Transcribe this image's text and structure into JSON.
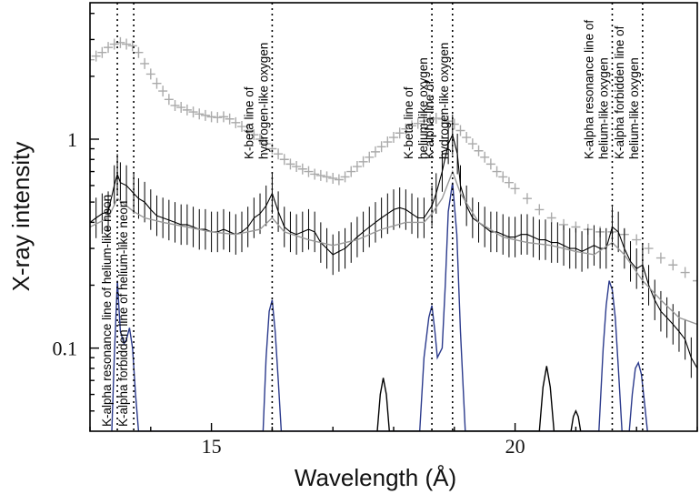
{
  "chart_data": {
    "type": "line",
    "title": "",
    "xlabel": "Wavelength (Å)",
    "ylabel": "X-ray intensity",
    "xlim": [
      13.0,
      23.0
    ],
    "ylim": [
      0.04,
      4.5
    ],
    "yscale": "log",
    "x_ticks": [
      15,
      20
    ],
    "y_ticks": [
      {
        "value": 0.1,
        "label": "0.1"
      },
      {
        "value": 1,
        "label": "1"
      }
    ],
    "grid": false,
    "annotations": [
      {
        "x": 13.45,
        "text": "K-alpha resonance line of helium-like neon"
      },
      {
        "x": 13.72,
        "text": "K-alpha forbidden line of helium-like neon"
      },
      {
        "x": 16.0,
        "lines": [
          "K-beta line of",
          "hydrogen-like oxygen"
        ]
      },
      {
        "x": 18.63,
        "lines": [
          "K-beta line of",
          "helium-like oxygen"
        ]
      },
      {
        "x": 18.97,
        "lines": [
          "K-alpha line of",
          "hydrogen-like oxygen"
        ]
      },
      {
        "x": 21.6,
        "lines": [
          "K-alpha resonance line of",
          "helium-like oxygen"
        ]
      },
      {
        "x": 22.1,
        "lines": [
          "K-alpha forbidden line of",
          "helium-like oxygen"
        ]
      }
    ],
    "series": [
      {
        "color": "#aaaaaa",
        "style": "crosses",
        "x": [
          13.0,
          13.1,
          13.2,
          13.3,
          13.4,
          13.5,
          13.6,
          13.7,
          13.8,
          13.9,
          14.0,
          14.1,
          14.2,
          14.3,
          14.4,
          14.5,
          14.6,
          14.7,
          14.8,
          14.9,
          15.0,
          15.1,
          15.2,
          15.3,
          15.4,
          15.5,
          15.6,
          15.7,
          15.8,
          15.9,
          16.0,
          16.1,
          16.2,
          16.3,
          16.4,
          16.5,
          16.6,
          16.7,
          16.8,
          16.9,
          17.0,
          17.1,
          17.2,
          17.3,
          17.4,
          17.5,
          17.6,
          17.7,
          17.8,
          17.9,
          18.0,
          18.1,
          18.2,
          18.3,
          18.4,
          18.5,
          18.6,
          18.7,
          18.8,
          18.9,
          19.0,
          19.1,
          19.2,
          19.3,
          19.4,
          19.5,
          19.6,
          19.7,
          19.8,
          19.9,
          20.0,
          20.2,
          20.4,
          20.6,
          20.8,
          21.0,
          21.2,
          21.4,
          21.6,
          21.8,
          22.0,
          22.2,
          22.4,
          22.6,
          22.8,
          23.0
        ],
        "y": [
          2.4,
          2.5,
          2.6,
          2.75,
          2.85,
          2.9,
          2.85,
          2.8,
          2.6,
          2.3,
          2.05,
          1.85,
          1.7,
          1.55,
          1.45,
          1.42,
          1.38,
          1.35,
          1.32,
          1.3,
          1.28,
          1.27,
          1.28,
          1.25,
          1.2,
          1.15,
          1.1,
          1.05,
          1.0,
          0.95,
          0.9,
          0.85,
          0.8,
          0.76,
          0.74,
          0.72,
          0.7,
          0.68,
          0.67,
          0.66,
          0.65,
          0.64,
          0.66,
          0.7,
          0.74,
          0.78,
          0.82,
          0.87,
          0.92,
          0.97,
          1.02,
          1.07,
          1.12,
          1.16,
          1.19,
          1.22,
          1.24,
          1.26,
          1.25,
          1.22,
          1.18,
          1.1,
          1.02,
          0.95,
          0.88,
          0.82,
          0.76,
          0.7,
          0.66,
          0.62,
          0.58,
          0.52,
          0.46,
          0.42,
          0.39,
          0.38,
          0.37,
          0.36,
          0.36,
          0.35,
          0.33,
          0.3,
          0.27,
          0.25,
          0.23,
          0.21
        ]
      },
      {
        "color": "#000000",
        "style": "errorbars",
        "x": [
          13.0,
          13.1,
          13.2,
          13.3,
          13.4,
          13.45,
          13.5,
          13.6,
          13.72,
          13.8,
          13.9,
          14.0,
          14.1,
          14.2,
          14.3,
          14.4,
          14.5,
          14.6,
          14.7,
          14.8,
          14.9,
          15.0,
          15.1,
          15.2,
          15.3,
          15.4,
          15.5,
          15.6,
          15.7,
          15.8,
          15.9,
          16.0,
          16.1,
          16.2,
          16.3,
          16.4,
          16.5,
          16.6,
          16.7,
          16.8,
          16.9,
          17.0,
          17.1,
          17.2,
          17.3,
          17.4,
          17.5,
          17.6,
          17.7,
          17.8,
          17.9,
          18.0,
          18.1,
          18.2,
          18.3,
          18.4,
          18.5,
          18.63,
          18.7,
          18.8,
          18.9,
          18.97,
          19.05,
          19.1,
          19.2,
          19.3,
          19.4,
          19.5,
          19.6,
          19.7,
          19.8,
          19.9,
          20.0,
          20.1,
          20.2,
          20.3,
          20.4,
          20.5,
          20.6,
          20.7,
          20.8,
          20.9,
          21.0,
          21.1,
          21.2,
          21.3,
          21.4,
          21.5,
          21.6,
          21.7,
          21.8,
          21.9,
          22.0,
          22.1,
          22.2,
          22.3,
          22.4,
          22.5,
          22.6,
          22.7,
          22.8,
          22.9,
          23.0
        ],
        "y": [
          0.4,
          0.42,
          0.44,
          0.45,
          0.6,
          0.68,
          0.62,
          0.6,
          0.55,
          0.52,
          0.5,
          0.46,
          0.43,
          0.42,
          0.41,
          0.4,
          0.39,
          0.39,
          0.38,
          0.37,
          0.37,
          0.36,
          0.36,
          0.37,
          0.36,
          0.35,
          0.36,
          0.38,
          0.42,
          0.44,
          0.48,
          0.55,
          0.45,
          0.38,
          0.36,
          0.35,
          0.36,
          0.37,
          0.36,
          0.32,
          0.3,
          0.28,
          0.29,
          0.3,
          0.32,
          0.34,
          0.36,
          0.38,
          0.4,
          0.42,
          0.44,
          0.46,
          0.47,
          0.46,
          0.44,
          0.42,
          0.42,
          0.48,
          0.55,
          0.7,
          0.95,
          1.05,
          0.85,
          0.6,
          0.48,
          0.42,
          0.4,
          0.38,
          0.36,
          0.36,
          0.35,
          0.34,
          0.34,
          0.35,
          0.35,
          0.34,
          0.33,
          0.33,
          0.32,
          0.32,
          0.31,
          0.3,
          0.3,
          0.29,
          0.3,
          0.31,
          0.3,
          0.3,
          0.38,
          0.36,
          0.3,
          0.26,
          0.24,
          0.25,
          0.2,
          0.17,
          0.15,
          0.14,
          0.13,
          0.12,
          0.11,
          0.09,
          0.08
        ]
      },
      {
        "color": "#999999",
        "style": "line",
        "x": [
          13.0,
          13.3,
          13.45,
          13.6,
          13.72,
          13.9,
          14.2,
          14.6,
          15.0,
          15.4,
          15.8,
          16.0,
          16.2,
          16.6,
          17.0,
          17.4,
          17.8,
          18.2,
          18.5,
          18.63,
          18.8,
          18.97,
          19.1,
          19.4,
          19.8,
          20.2,
          20.6,
          21.0,
          21.3,
          21.6,
          21.8,
          22.1,
          22.4,
          22.7,
          23.0
        ],
        "y": [
          0.38,
          0.42,
          0.52,
          0.48,
          0.45,
          0.42,
          0.4,
          0.38,
          0.36,
          0.35,
          0.37,
          0.42,
          0.36,
          0.33,
          0.31,
          0.33,
          0.37,
          0.4,
          0.4,
          0.44,
          0.52,
          0.7,
          0.55,
          0.4,
          0.34,
          0.32,
          0.31,
          0.29,
          0.28,
          0.32,
          0.28,
          0.21,
          0.17,
          0.14,
          0.13
        ]
      },
      {
        "color": "#2b3a8c",
        "style": "line",
        "x": [
          13.36,
          13.4,
          13.45,
          13.5,
          13.56,
          13.6,
          13.65,
          13.7,
          13.75,
          13.8,
          15.85,
          15.9,
          15.95,
          16.0,
          16.05,
          16.1,
          16.15,
          18.43,
          18.5,
          18.58,
          18.63,
          18.68,
          18.72,
          18.8,
          18.85,
          18.9,
          18.97,
          19.04,
          19.1,
          19.18,
          21.38,
          21.45,
          21.5,
          21.55,
          21.6,
          21.65,
          21.7,
          21.76,
          21.88,
          21.93,
          21.98,
          22.03,
          22.08,
          22.13,
          22.18
        ],
        "y": [
          0.04,
          0.09,
          0.21,
          0.12,
          0.105,
          0.11,
          0.125,
          0.1,
          0.06,
          0.04,
          0.04,
          0.09,
          0.15,
          0.17,
          0.12,
          0.07,
          0.04,
          0.04,
          0.09,
          0.14,
          0.16,
          0.12,
          0.09,
          0.1,
          0.2,
          0.45,
          0.62,
          0.35,
          0.12,
          0.04,
          0.04,
          0.1,
          0.16,
          0.21,
          0.19,
          0.14,
          0.08,
          0.04,
          0.04,
          0.06,
          0.08,
          0.085,
          0.075,
          0.055,
          0.04
        ]
      },
      {
        "color": "#000000",
        "style": "line",
        "x": [
          17.73,
          17.78,
          17.83,
          17.88,
          17.93,
          20.4,
          20.46,
          20.52,
          20.58,
          20.64,
          20.92,
          20.96,
          21.0,
          21.04,
          21.08
        ],
        "y": [
          0.04,
          0.06,
          0.072,
          0.06,
          0.04,
          0.04,
          0.065,
          0.082,
          0.065,
          0.04,
          0.04,
          0.047,
          0.05,
          0.047,
          0.04
        ]
      }
    ]
  }
}
